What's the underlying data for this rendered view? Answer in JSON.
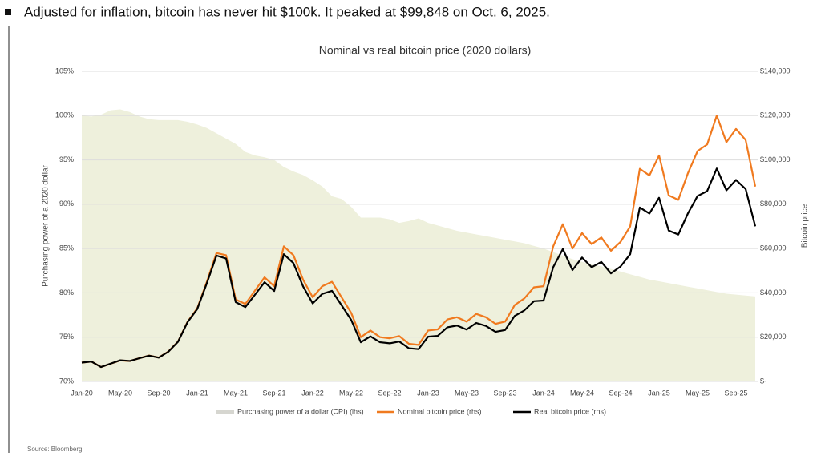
{
  "headline": "Adjusted for inflation, bitcoin has never hit $100k. It peaked at $99,848 on Oct. 6, 2025.",
  "source": "Source: Bloomberg",
  "chart_data": {
    "type": "line",
    "title": "Nominal vs real bitcoin price (2020 dollars)",
    "y_label": "Purchasing power of a 2020 dollar",
    "y2_label": "Bitcoin price",
    "categories": [
      "Jan-20",
      null,
      null,
      null,
      "May-20",
      null,
      null,
      null,
      "Sep-20",
      null,
      null,
      null,
      "Jan-21",
      null,
      null,
      null,
      "May-21",
      null,
      null,
      null,
      "Sep-21",
      null,
      null,
      null,
      "Jan-22",
      null,
      null,
      null,
      "May-22",
      null,
      null,
      null,
      "Sep-22",
      null,
      null,
      null,
      "Jan-23",
      null,
      null,
      null,
      "May-23",
      null,
      null,
      null,
      "Sep-23",
      null,
      null,
      null,
      "Jan-24",
      null,
      null,
      null,
      "May-24",
      null,
      null,
      null,
      "Sep-24",
      null,
      null,
      null,
      "Jan-25",
      null,
      null,
      null,
      "May-25",
      null,
      null,
      null,
      "Sep-25",
      null,
      null
    ],
    "series": [
      {
        "name": "Purchasing power of a dollar (CPI) (lhs)",
        "color": "#eef0dc",
        "area": true,
        "values": [
          100,
          99.9,
          100.1,
          100.6,
          100.7,
          100.4,
          99.9,
          99.6,
          99.5,
          99.5,
          99.5,
          99.3,
          99.0,
          98.6,
          98.0,
          97.4,
          96.8,
          95.9,
          95.5,
          95.3,
          95.0,
          94.2,
          93.7,
          93.3,
          92.7,
          92.0,
          90.9,
          90.6,
          89.7,
          88.5,
          88.5,
          88.5,
          88.3,
          87.9,
          88.1,
          88.4,
          87.9,
          87.6,
          87.3,
          87.0,
          86.8,
          86.6,
          86.4,
          86.2,
          86.0,
          85.8,
          85.6,
          85.3,
          85.0,
          84.6,
          84.2,
          83.8,
          83.5,
          83.2,
          83.0,
          82.7,
          82.4,
          82.1,
          81.8,
          81.5,
          81.3,
          81.1,
          80.9,
          80.7,
          80.5,
          80.3,
          80.1,
          79.9,
          79.8,
          79.7,
          79.6
        ]
      },
      {
        "name": "Nominal bitcoin price (rhs)",
        "color": "#f07a1f",
        "axis": "y2",
        "values": [
          8500,
          9000,
          6500,
          8000,
          9500,
          9200,
          10500,
          11700,
          10800,
          13500,
          18000,
          27000,
          33000,
          45000,
          58000,
          57000,
          37000,
          35000,
          41000,
          47000,
          43000,
          61000,
          57000,
          46000,
          38000,
          43000,
          45000,
          38000,
          31000,
          20000,
          23000,
          20000,
          19500,
          20500,
          17000,
          16500,
          23000,
          23500,
          28000,
          29000,
          27000,
          30500,
          29000,
          26000,
          27000,
          34500,
          37500,
          42500,
          43000,
          61000,
          71000,
          60000,
          67000,
          62000,
          65000,
          59000,
          63000,
          70000,
          96000,
          93000,
          102000,
          84000,
          82000,
          94000,
          104000,
          107000,
          120000,
          108000,
          114000,
          109000,
          88000
        ]
      },
      {
        "name": "Real bitcoin price (rhs)",
        "color": "#000000",
        "axis": "y2",
        "values": [
          8500,
          8990,
          6500,
          8050,
          9570,
          9240,
          10490,
          11650,
          10750,
          13430,
          17910,
          26810,
          32670,
          44370,
          56840,
          55520,
          35820,
          33570,
          39160,
          44790,
          40850,
          57460,
          53410,
          42920,
          35230,
          39560,
          40910,
          34430,
          27810,
          17700,
          20360,
          17700,
          17220,
          18020,
          14980,
          14590,
          20220,
          20590,
          24440,
          25230,
          23440,
          26410,
          25060,
          22410,
          23220,
          29600,
          32100,
          36250,
          36550,
          51610,
          59780,
          50280,
          55950,
          51580,
          53950,
          48790,
          51910,
          57470,
          78530,
          75800,
          82930,
          68120,
          66340,
          75860,
          83720,
          85920,
          96120,
          86290,
          90970,
          86870,
          70050
        ]
      }
    ],
    "ylim": [
      70,
      105
    ],
    "yticks": [
      {
        "value": 70,
        "label": "70%"
      },
      {
        "value": 75,
        "label": "75%"
      },
      {
        "value": 80,
        "label": "80%"
      },
      {
        "value": 85,
        "label": "85%"
      },
      {
        "value": 90,
        "label": "90%"
      },
      {
        "value": 95,
        "label": "95%"
      },
      {
        "value": 100,
        "label": "100%"
      },
      {
        "value": 105,
        "label": "105%"
      }
    ],
    "y2lim": [
      0,
      140000
    ],
    "y2ticks": [
      {
        "value": 0,
        "label": "$-"
      },
      {
        "value": 20000,
        "label": "$20,000"
      },
      {
        "value": 40000,
        "label": "$40,000"
      },
      {
        "value": 60000,
        "label": "$60,000"
      },
      {
        "value": 80000,
        "label": "$80,000"
      },
      {
        "value": 100000,
        "label": "$100,000"
      },
      {
        "value": 120000,
        "label": "$120,000"
      },
      {
        "value": 140000,
        "label": "$140,000"
      }
    ],
    "grid": true,
    "legend": "bottom"
  }
}
